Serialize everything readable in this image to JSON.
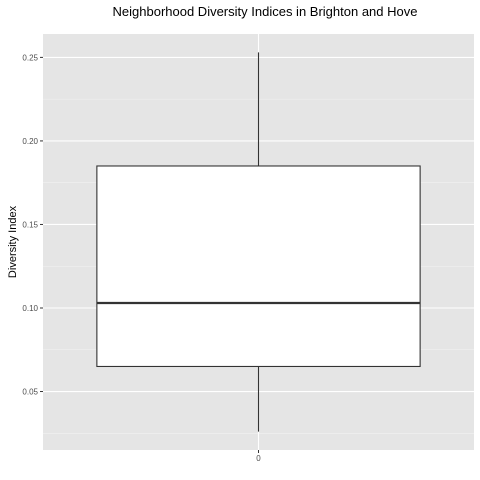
{
  "chart_data": {
    "type": "boxplot",
    "title": "Neighborhood Diversity Indices in Brighton and Hove",
    "xlabel": "",
    "ylabel": "Diversity Index",
    "categories": [
      "0"
    ],
    "boxes": [
      {
        "category": "0",
        "whisker_low": 0.026,
        "q1": 0.065,
        "median": 0.103,
        "q3": 0.185,
        "whisker_high": 0.253
      }
    ],
    "ylim": [
      0.015,
      0.264
    ],
    "y_ticks": [
      0.05,
      0.1,
      0.15,
      0.2,
      0.25
    ],
    "y_tick_labels": [
      "0.05",
      "0.10",
      "0.15",
      "0.20",
      "0.25"
    ],
    "grid": true,
    "panel_background": "#e5e5e5",
    "box_fill": "#ffffff",
    "line_color": "#333333"
  }
}
